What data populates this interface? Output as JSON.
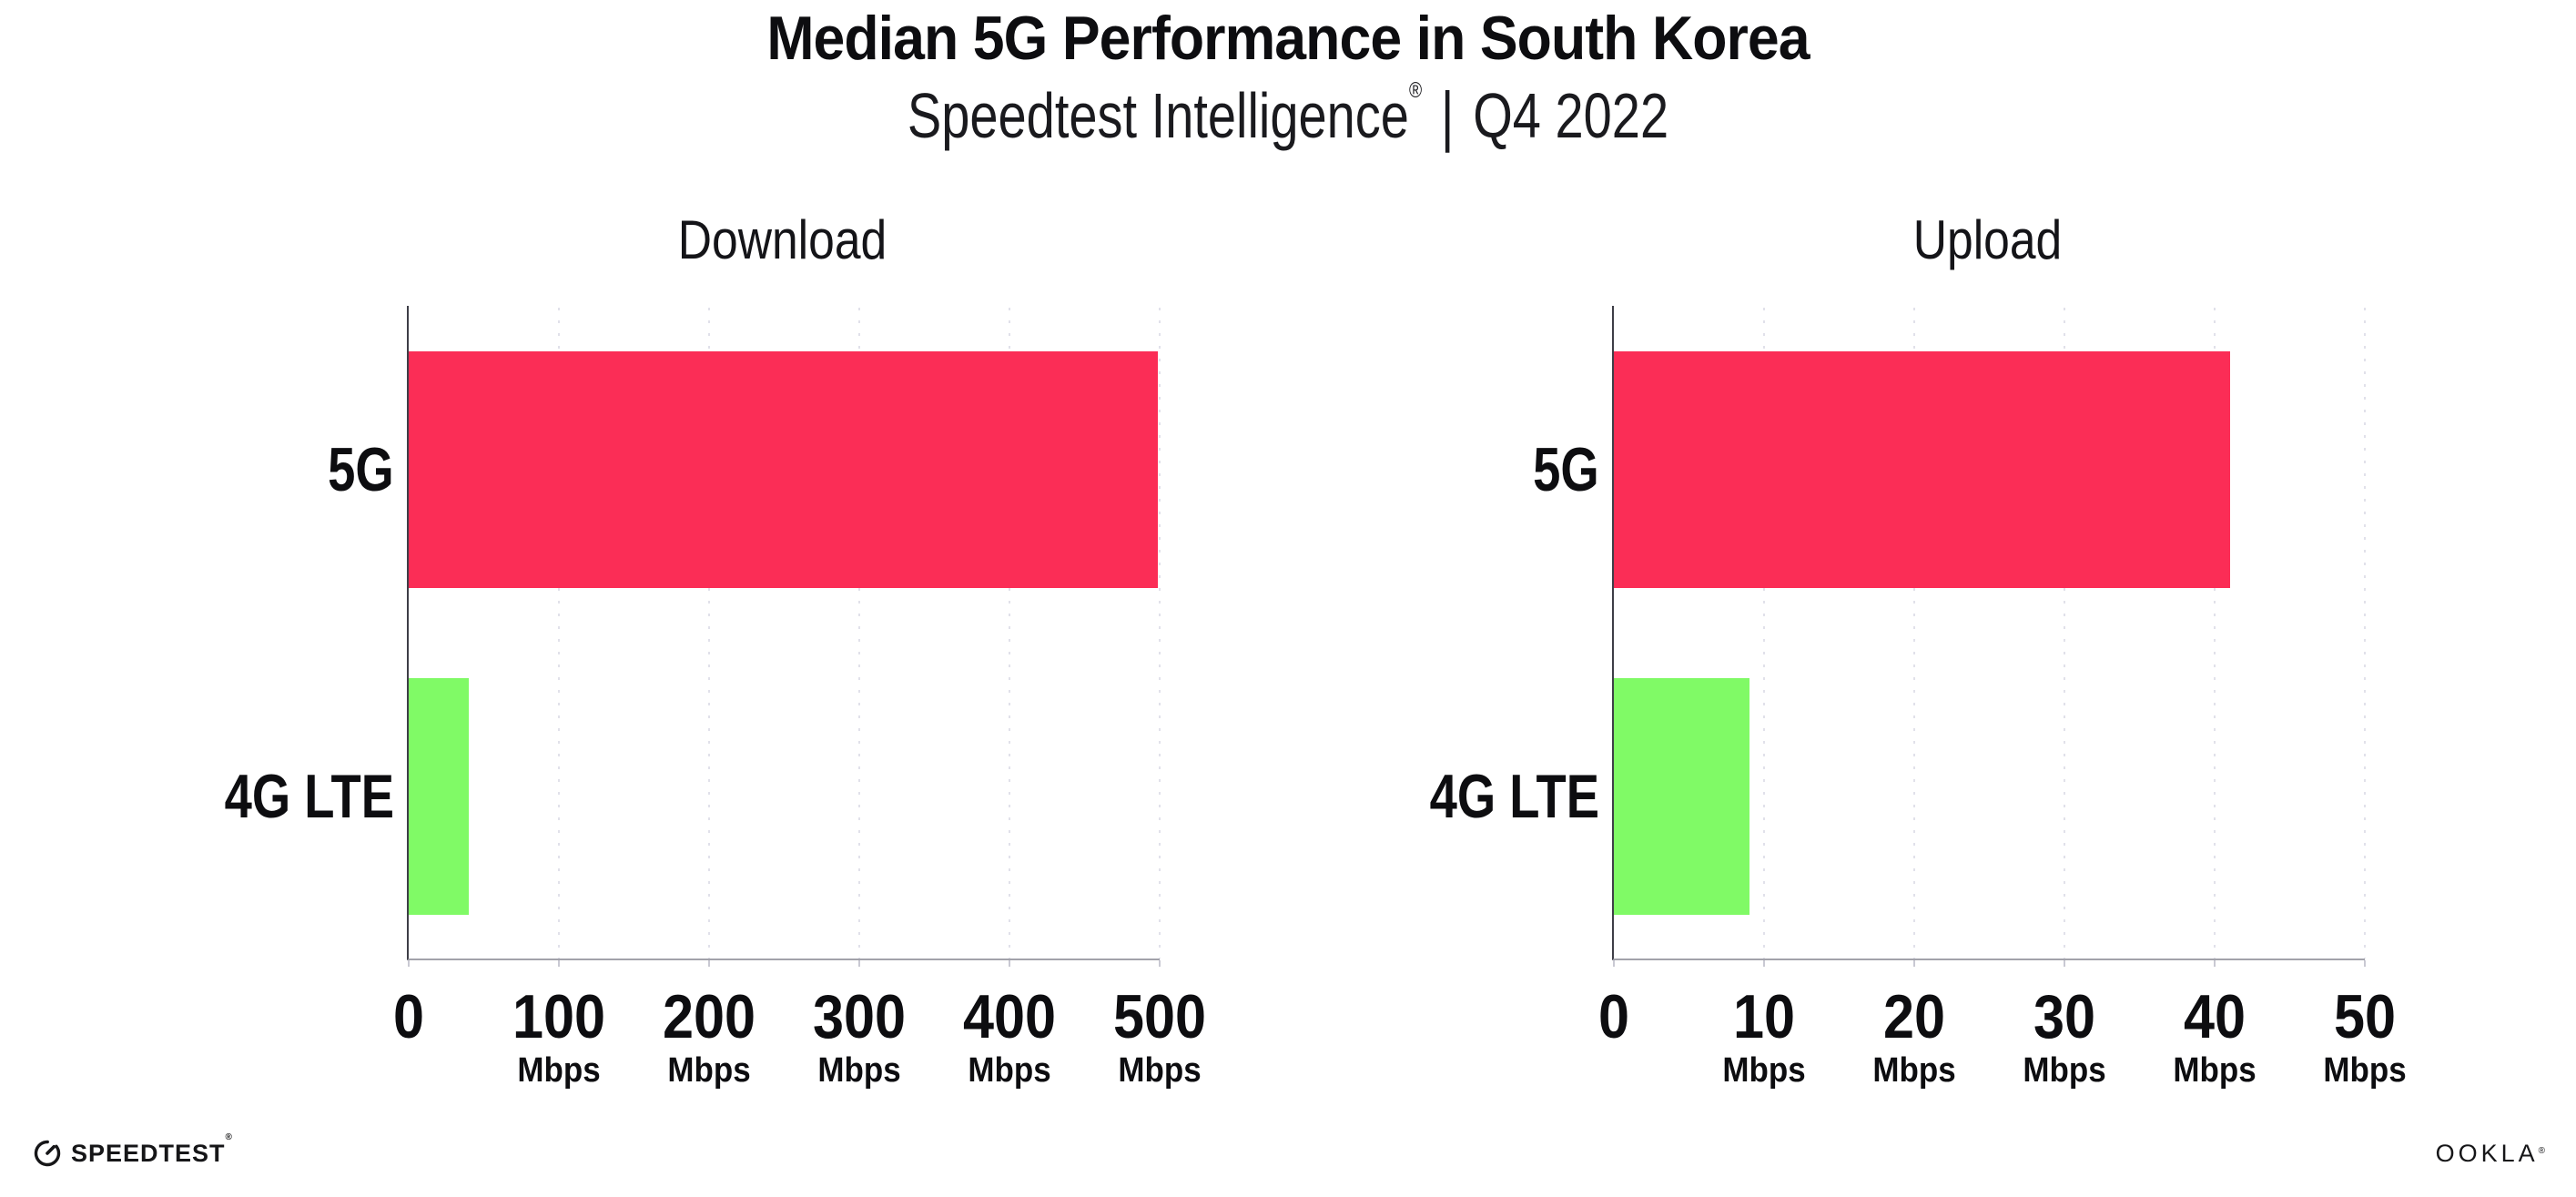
{
  "header": {
    "title": "Median 5G Performance in South Korea",
    "subtitle": {
      "brand": "Speedtest Intelligence",
      "registered": "®",
      "separator": "|",
      "period": "Q4 2022"
    }
  },
  "chart_data": [
    {
      "type": "bar",
      "orientation": "horizontal",
      "title": "Download",
      "categories": [
        "5G",
        "4G LTE"
      ],
      "values": [
        499,
        40
      ],
      "unit": "Mbps",
      "xlim": [
        0,
        500
      ],
      "xticks": [
        0,
        100,
        200,
        300,
        400,
        500
      ],
      "bar_colors": [
        "#fb2d56",
        "#80fa66"
      ],
      "grid": "dotted-vertical",
      "legend": "none"
    },
    {
      "type": "bar",
      "orientation": "horizontal",
      "title": "Upload",
      "categories": [
        "5G",
        "4G LTE"
      ],
      "values": [
        41,
        9
      ],
      "unit": "Mbps",
      "xlim": [
        0,
        50
      ],
      "xticks": [
        0,
        10,
        20,
        30,
        40,
        50
      ],
      "bar_colors": [
        "#fb2d56",
        "#80fa66"
      ],
      "grid": "dotted-vertical",
      "legend": "none"
    }
  ],
  "colors": {
    "bar_5g": "#fb2d56",
    "bar_4g_lte": "#80fa66",
    "gridline": "#e1e1ea",
    "axis_x": "#a2a2aa",
    "axis_y": "#3e3e47",
    "tick": "#c9c9d3",
    "text": "#0d0d10"
  },
  "footer": {
    "speedtest_wordmark": "SPEEDTEST",
    "speedtest_registered": "®",
    "ookla_wordmark": "OOKLA",
    "ookla_registered": "®"
  }
}
